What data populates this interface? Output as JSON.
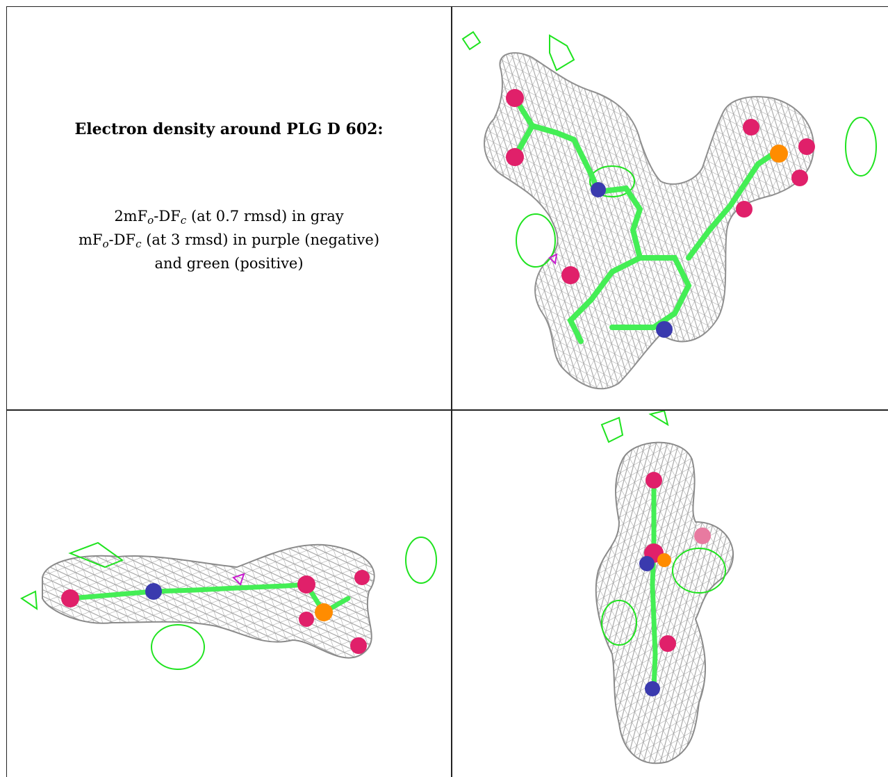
{
  "panel_text": {
    "title": "Electron density around PLG D 602:",
    "legend": {
      "line1": {
        "prefix": "2mF",
        "o_sub": "o",
        "mid": "-DF",
        "c_sub": "c",
        "suffix": " (at 0.7 rmsd) in gray"
      },
      "line2": {
        "prefix": "mF",
        "o_sub": "o",
        "mid": "-DF",
        "c_sub": "c",
        "suffix": " (at 3 rmsd) in purple (negative)"
      },
      "line3": "and green (positive)"
    }
  },
  "colors": {
    "density_2fofc": "#9b9b9b",
    "positive_difference": "#1fe31f",
    "negative_difference": "#c81ecf",
    "carbon": "#44ee55",
    "oxygen": "#e0206a",
    "nitrogen": "#3a3aae",
    "phosphorus": "#ff8c00",
    "border": "#222222"
  },
  "views": [
    "top-right-view",
    "bottom-left-view",
    "bottom-right-view"
  ]
}
